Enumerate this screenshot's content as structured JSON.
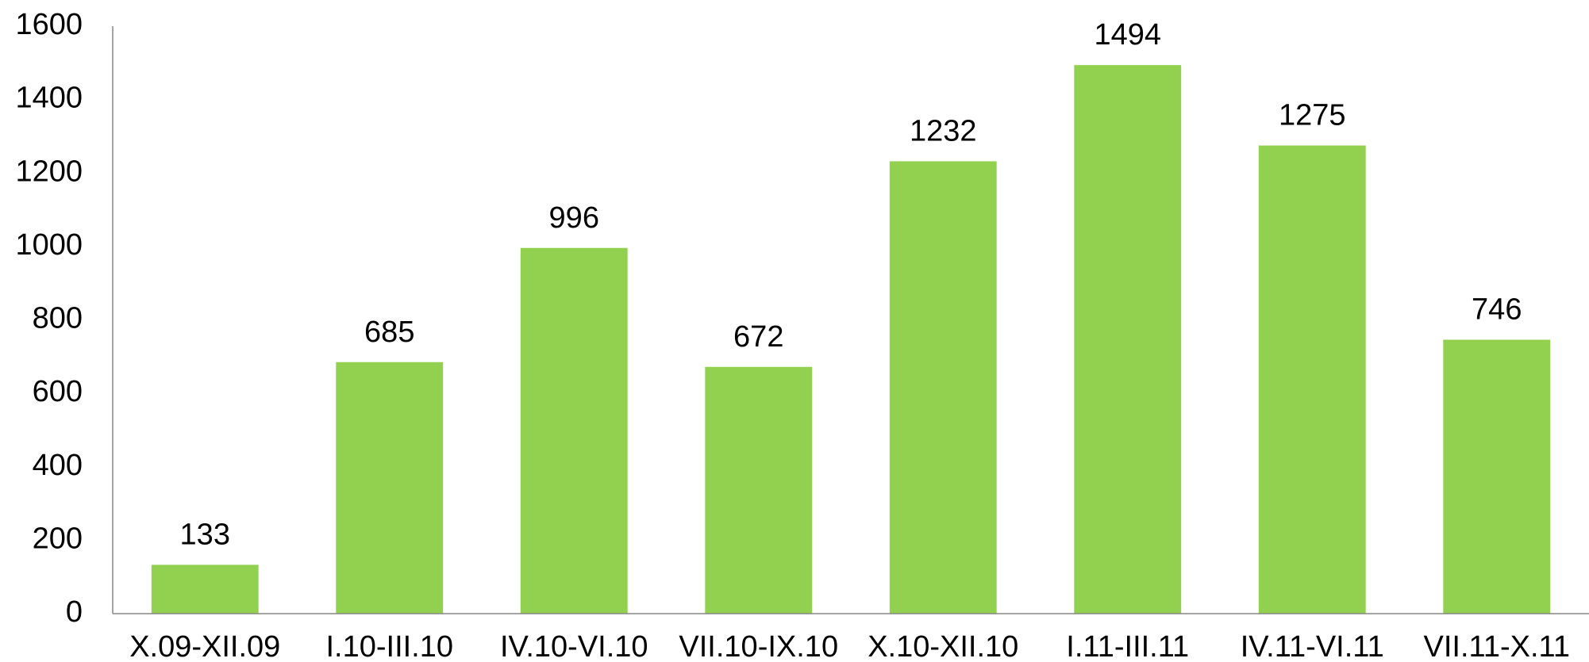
{
  "chart_data": {
    "type": "bar",
    "categories": [
      "X.09-XII.09",
      "I.10-III.10",
      "IV.10-VI.10",
      "VII.10-IX.10",
      "X.10-XII.10",
      "I.11-III.11",
      "IV.11-VI.11",
      "VII.11-X.11"
    ],
    "values": [
      133,
      685,
      996,
      672,
      1232,
      1494,
      1275,
      746
    ],
    "color": "#92d050",
    "ylim": [
      0,
      1600
    ],
    "yticks": [
      0,
      200,
      400,
      600,
      800,
      1000,
      1200,
      1400,
      1600
    ],
    "grid": false
  }
}
